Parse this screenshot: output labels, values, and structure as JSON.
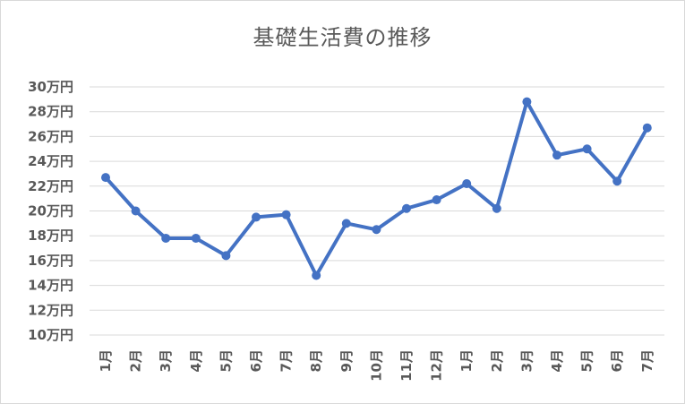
{
  "chart_data": {
    "type": "line",
    "title": "基礎生活費の推移",
    "categories": [
      "1月",
      "2月",
      "3月",
      "4月",
      "5月",
      "6月",
      "7月",
      "8月",
      "9月",
      "10月",
      "11月",
      "12月",
      "1月",
      "2月",
      "3月",
      "4月",
      "5月",
      "6月",
      "7月"
    ],
    "series": [
      {
        "values": [
          22.7,
          20.0,
          17.8,
          17.8,
          16.4,
          19.5,
          19.7,
          14.8,
          19.0,
          18.5,
          20.2,
          20.9,
          22.2,
          20.2,
          28.8,
          24.5,
          25.0,
          22.4,
          26.7
        ],
        "color": "#4472c4"
      }
    ],
    "ylim": [
      10,
      30
    ],
    "yticks": [
      10,
      12,
      14,
      16,
      18,
      20,
      22,
      24,
      26,
      28,
      30
    ],
    "ytick_labels": [
      "10万円",
      "12万円",
      "14万円",
      "16万円",
      "18万円",
      "20万円",
      "22万円",
      "24万円",
      "26万円",
      "28万円",
      "30万円"
    ],
    "grid": true,
    "colors": {
      "line": "#4472c4",
      "grid": "#d9d9d9",
      "text": "#595959"
    }
  }
}
